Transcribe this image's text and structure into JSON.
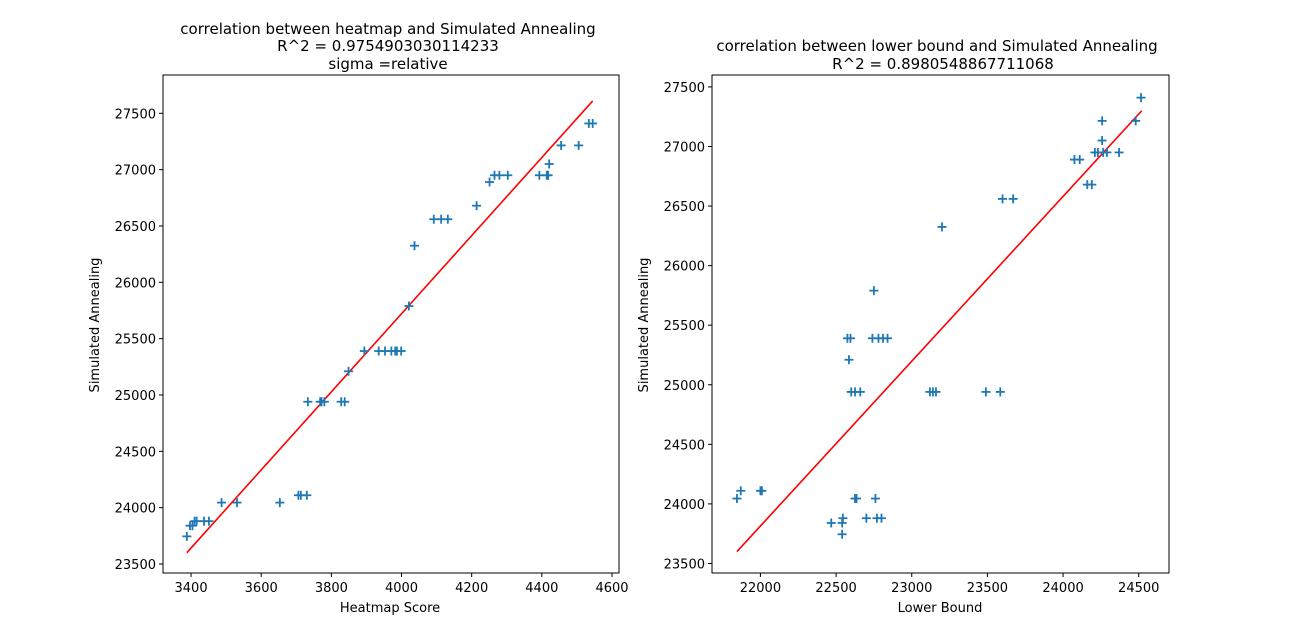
{
  "chart_data": [
    {
      "type": "scatter",
      "title_lines": [
        "correlation between heatmap and Simulated Annealing",
        "R^2 = 0.9754903030114233",
        "sigma =relative"
      ],
      "xlabel": "Heatmap Score",
      "ylabel": "Simulated Annealing",
      "xlim": [
        3320,
        4620
      ],
      "ylim": [
        23420,
        27840
      ],
      "xticks": [
        3400,
        3600,
        3800,
        4000,
        4200,
        4400,
        4600
      ],
      "yticks": [
        23500,
        24000,
        24500,
        25000,
        25500,
        26000,
        26500,
        27000,
        27500
      ],
      "grid": false,
      "marker": "+",
      "marker_color": "#1f77b4",
      "line_color": "#ff0000",
      "fit_line": [
        [
          3388,
          23600
        ],
        [
          4545,
          27610
        ]
      ],
      "points": [
        [
          3388,
          23745
        ],
        [
          3397,
          23840
        ],
        [
          3404,
          23840
        ],
        [
          3410,
          23880
        ],
        [
          3416,
          23880
        ],
        [
          3437,
          23880
        ],
        [
          3451,
          23880
        ],
        [
          3487,
          24045
        ],
        [
          3531,
          24045
        ],
        [
          3653,
          24045
        ],
        [
          3706,
          24110
        ],
        [
          3713,
          24110
        ],
        [
          3730,
          24110
        ],
        [
          3733,
          24940
        ],
        [
          3768,
          24940
        ],
        [
          3772,
          24940
        ],
        [
          3780,
          24940
        ],
        [
          3828,
          24940
        ],
        [
          3838,
          24940
        ],
        [
          3849,
          25210
        ],
        [
          3894,
          25390
        ],
        [
          3935,
          25390
        ],
        [
          3953,
          25390
        ],
        [
          3971,
          25390
        ],
        [
          3982,
          25390
        ],
        [
          3987,
          25390
        ],
        [
          3999,
          25390
        ],
        [
          4021,
          25790
        ],
        [
          4037,
          26325
        ],
        [
          4092,
          26560
        ],
        [
          4113,
          26560
        ],
        [
          4132,
          26560
        ],
        [
          4214,
          26680
        ],
        [
          4251,
          26890
        ],
        [
          4265,
          26950
        ],
        [
          4279,
          26950
        ],
        [
          4303,
          26950
        ],
        [
          4393,
          26950
        ],
        [
          4414,
          26950
        ],
        [
          4418,
          26950
        ],
        [
          4421,
          27050
        ],
        [
          4455,
          27215
        ],
        [
          4505,
          27215
        ],
        [
          4534,
          27410
        ],
        [
          4545,
          27410
        ]
      ]
    },
    {
      "type": "scatter",
      "title_lines": [
        "correlation between lower bound and Simulated Annealing",
        "R^2 = 0.8980548867711068"
      ],
      "xlabel": "Lower Bound",
      "ylabel": "Simulated Annealing",
      "xlim": [
        21680,
        24700
      ],
      "ylim": [
        23420,
        27600
      ],
      "xticks": [
        22000,
        22500,
        23000,
        23500,
        24000,
        24500
      ],
      "yticks": [
        23500,
        24000,
        24500,
        25000,
        25500,
        26000,
        26500,
        27000,
        27500
      ],
      "grid": false,
      "marker": "+",
      "marker_color": "#1f77b4",
      "line_color": "#ff0000",
      "fit_line": [
        [
          21845,
          23600
        ],
        [
          24520,
          27300
        ]
      ],
      "points": [
        [
          21845,
          24045
        ],
        [
          21870,
          24110
        ],
        [
          22000,
          24110
        ],
        [
          22010,
          24110
        ],
        [
          22468,
          23840
        ],
        [
          22540,
          23840
        ],
        [
          22545,
          23880
        ],
        [
          22540,
          23745
        ],
        [
          22575,
          25390
        ],
        [
          22585,
          25210
        ],
        [
          22595,
          25390
        ],
        [
          22600,
          24940
        ],
        [
          22625,
          24940
        ],
        [
          22625,
          24045
        ],
        [
          22635,
          24045
        ],
        [
          22660,
          24940
        ],
        [
          22700,
          23880
        ],
        [
          22740,
          25390
        ],
        [
          22750,
          25790
        ],
        [
          22760,
          24045
        ],
        [
          22770,
          23880
        ],
        [
          22780,
          25390
        ],
        [
          22800,
          23880
        ],
        [
          22810,
          25390
        ],
        [
          22840,
          25390
        ],
        [
          23120,
          24940
        ],
        [
          23140,
          24940
        ],
        [
          23160,
          24940
        ],
        [
          23200,
          26325
        ],
        [
          23490,
          24940
        ],
        [
          23585,
          24940
        ],
        [
          23600,
          26560
        ],
        [
          23670,
          26560
        ],
        [
          24075,
          26890
        ],
        [
          24110,
          26890
        ],
        [
          24160,
          26680
        ],
        [
          24190,
          26680
        ],
        [
          24210,
          26950
        ],
        [
          24230,
          26950
        ],
        [
          24265,
          26950
        ],
        [
          24258,
          27050
        ],
        [
          24258,
          27215
        ],
        [
          24290,
          26950
        ],
        [
          24370,
          26950
        ],
        [
          24480,
          27215
        ],
        [
          24515,
          27410
        ]
      ]
    }
  ]
}
